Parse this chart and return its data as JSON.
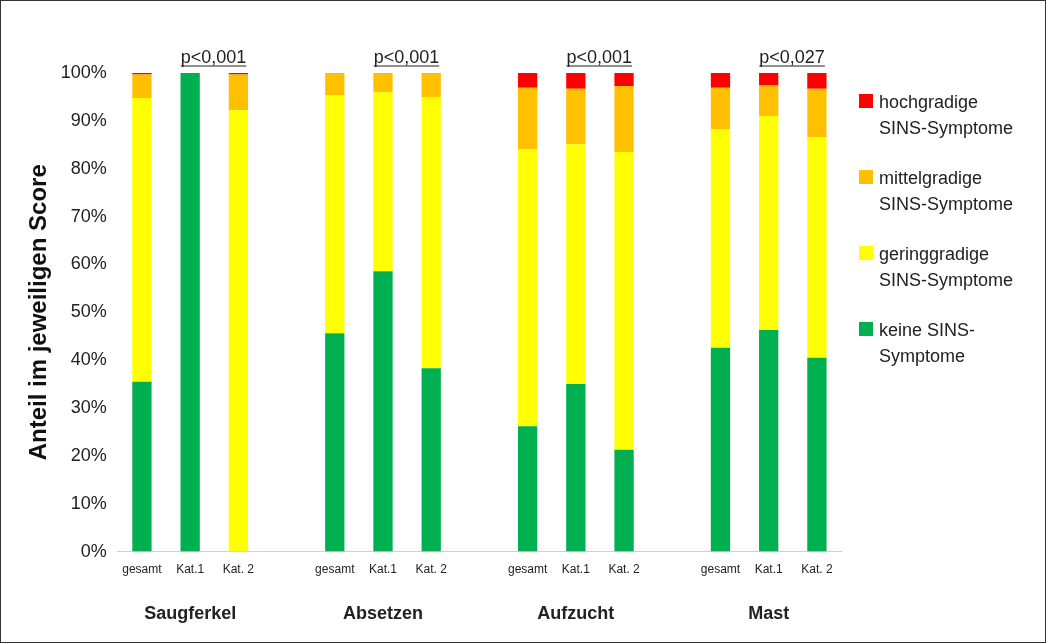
{
  "chart_data": {
    "type": "bar",
    "stacked": true,
    "ylabel": "Anteil im jeweiligen Score",
    "categories": [
      "gesamt",
      "Kat.1",
      "Kat. 2",
      null,
      "gesamt",
      "Kat.1",
      "Kat. 2",
      null,
      "gesamt",
      "Kat.1",
      "Kat. 2",
      null,
      "gesamt",
      "Kat.1",
      "Kat. 2"
    ],
    "series": [
      {
        "name": "keine SINS-Symptome",
        "color": "#00b050",
        "values": [
          35.5,
          100,
          0,
          null,
          45.6,
          58.6,
          38.3,
          null,
          26.2,
          35.0,
          21.3,
          null,
          42.6,
          46.3,
          40.5
        ]
      },
      {
        "name": "geringgradige SINS-Symptome",
        "color": "#ffff00",
        "values": [
          59.3,
          0,
          92.2,
          null,
          49.7,
          37.4,
          56.7,
          null,
          57.8,
          50.1,
          62.2,
          null,
          45.6,
          44.7,
          46.1
        ]
      },
      {
        "name": "mittelgradige SINS-Symptome",
        "color": "#ffc000",
        "values": [
          4.9,
          0,
          7.5,
          null,
          4.7,
          4.0,
          5.0,
          null,
          12.9,
          11.6,
          13.8,
          null,
          8.7,
          6.4,
          10.1
        ]
      },
      {
        "name": "hochgradige SINS-Symptome",
        "color": "#ff0000",
        "values": [
          0.3,
          0,
          0.3,
          null,
          0,
          0,
          0,
          null,
          3.1,
          3.3,
          2.7,
          null,
          3.1,
          2.6,
          3.3
        ]
      }
    ],
    "ylim": [
      0,
      100
    ],
    "yticks": [
      {
        "value": 0,
        "label": "0%"
      },
      {
        "value": 10,
        "label": "10%"
      },
      {
        "value": 20,
        "label": "20%"
      },
      {
        "value": 30,
        "label": "30%"
      },
      {
        "value": 40,
        "label": "40%"
      },
      {
        "value": 50,
        "label": "50%"
      },
      {
        "value": 60,
        "label": "60%"
      },
      {
        "value": 70,
        "label": "70%"
      },
      {
        "value": 80,
        "label": "80%"
      },
      {
        "value": 90,
        "label": "90%"
      },
      {
        "value": 100,
        "label": "100%"
      }
    ],
    "grid": false,
    "legend": "right",
    "annotations": [
      "p<0,001",
      "p<0,001",
      "p<0,001",
      "p<0,027",
      "Saugferkel",
      "Absetzen",
      "Aufzucht",
      "Mast"
    ]
  }
}
